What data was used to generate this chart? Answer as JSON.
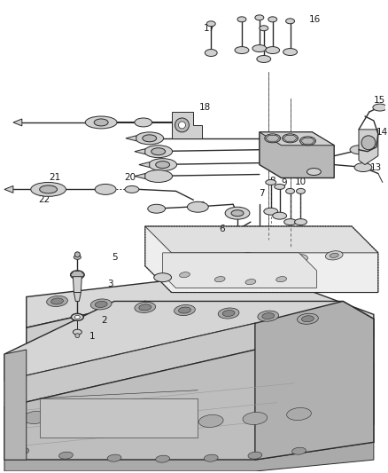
{
  "bg_color": "#ffffff",
  "fg_color": "#1a1a1a",
  "fig_width": 4.38,
  "fig_height": 5.33,
  "dpi": 100,
  "line_color": "#2a2a2a",
  "label_fontsize": 7.0,
  "label_color": "#1a1a1a"
}
